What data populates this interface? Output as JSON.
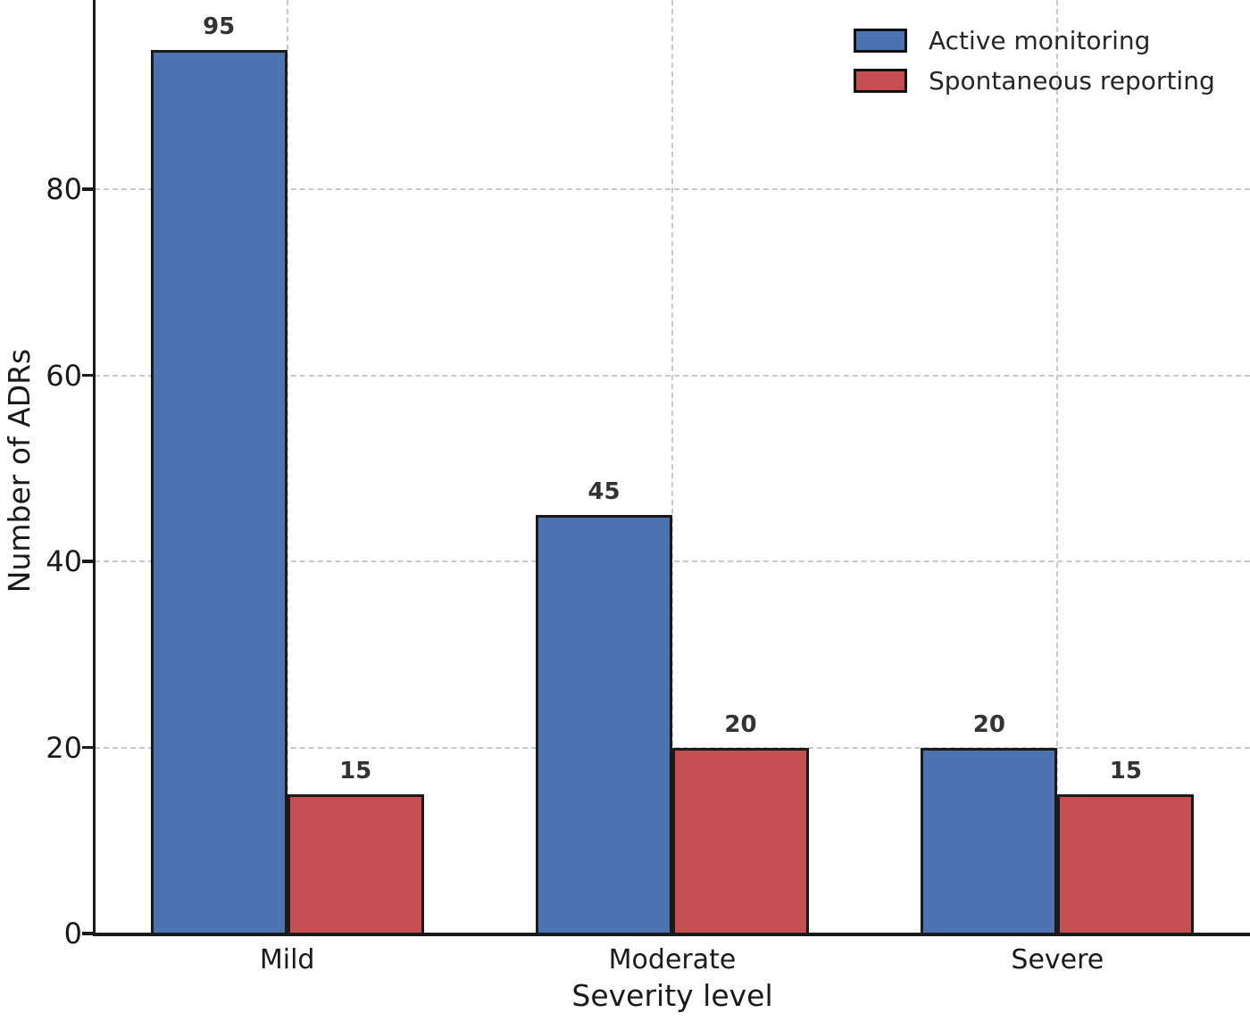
{
  "chart_data": {
    "type": "bar",
    "categories": [
      "Mild",
      "Moderate",
      "Severe"
    ],
    "series": [
      {
        "name": "Active monitoring",
        "color": "#4C72B0",
        "values": [
          95,
          45,
          20
        ]
      },
      {
        "name": "Spontaneous reporting",
        "color": "#C44E52",
        "values": [
          15,
          20,
          15
        ]
      }
    ],
    "value_labels": [
      [
        95,
        45,
        20
      ],
      [
        15,
        20,
        15
      ]
    ],
    "xlabel": "Severity level",
    "ylabel": "Number of ADRs",
    "yticks": [
      0,
      20,
      40,
      60,
      80
    ],
    "ylim": [
      0,
      100.3
    ],
    "grid": "dashed-both-axes",
    "legend_position": "upper-right",
    "bar_edge_color": "#1a1a1a"
  },
  "colors": {
    "background": "#ffffff",
    "grid": "#c9c9c9",
    "axis": "#1a1a1a",
    "tick_text": "#1a1a1a",
    "value_label_text": "#333333",
    "legend_text": "#262626"
  }
}
